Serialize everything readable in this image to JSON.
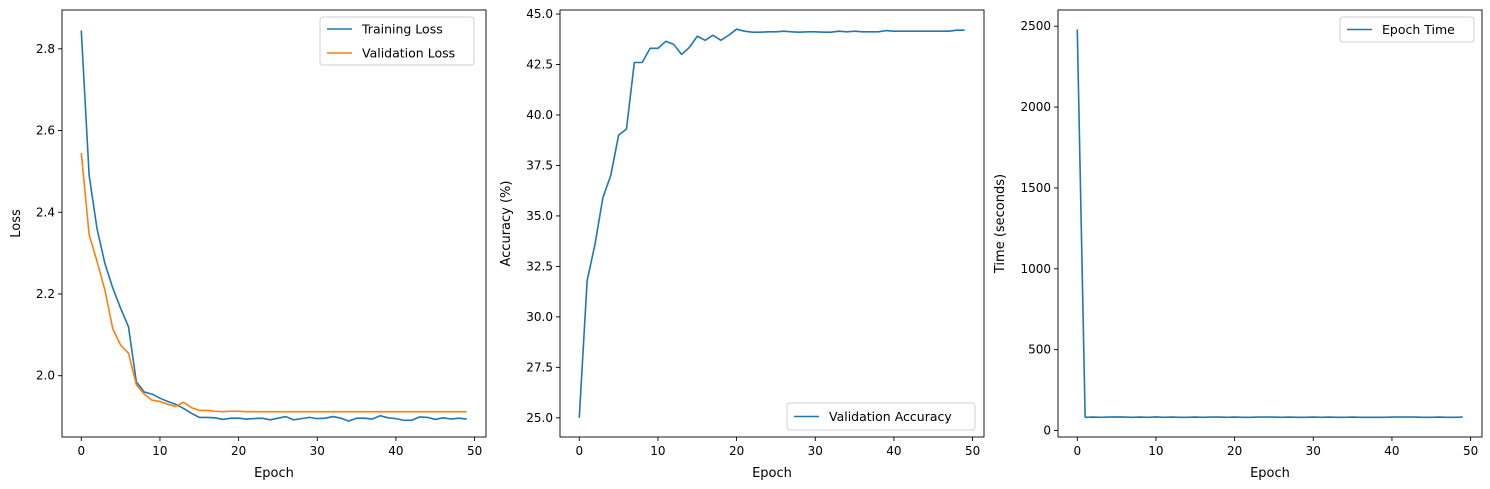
{
  "chart_data": [
    {
      "type": "line",
      "xlabel": "Epoch",
      "ylabel": "Loss",
      "xlim": [
        -2.45,
        51.45
      ],
      "ylim": [
        1.85,
        2.895
      ],
      "xticks": [
        0,
        10,
        20,
        30,
        40,
        50
      ],
      "yticks": [
        2.0,
        2.2,
        2.4,
        2.6,
        2.8
      ],
      "ytick_labels": [
        "2.0",
        "2.2",
        "2.4",
        "2.6",
        "2.8"
      ],
      "grid": false,
      "legend_location": "upper right",
      "colors": [
        "#1f77b4",
        "#ff7f0e"
      ],
      "x": [
        0,
        1,
        2,
        3,
        4,
        5,
        6,
        7,
        8,
        9,
        10,
        11,
        12,
        13,
        14,
        15,
        16,
        17,
        18,
        19,
        20,
        21,
        22,
        23,
        24,
        25,
        26,
        27,
        28,
        29,
        30,
        31,
        32,
        33,
        34,
        35,
        36,
        37,
        38,
        39,
        40,
        41,
        42,
        43,
        44,
        45,
        46,
        47,
        48,
        49
      ],
      "series": [
        {
          "name": "Training Loss",
          "values": [
            2.845,
            2.49,
            2.36,
            2.275,
            2.215,
            2.165,
            2.12,
            1.985,
            1.96,
            1.955,
            1.945,
            1.937,
            1.93,
            1.92,
            1.908,
            1.898,
            1.898,
            1.897,
            1.893,
            1.896,
            1.896,
            1.894,
            1.895,
            1.896,
            1.892,
            1.896,
            1.9,
            1.892,
            1.895,
            1.898,
            1.895,
            1.896,
            1.9,
            1.896,
            1.889,
            1.896,
            1.896,
            1.894,
            1.902,
            1.897,
            1.895,
            1.891,
            1.891,
            1.899,
            1.898,
            1.893,
            1.897,
            1.894,
            1.896,
            1.894
          ]
        },
        {
          "name": "Validation Loss",
          "values": [
            2.545,
            2.345,
            2.28,
            2.21,
            2.115,
            2.075,
            2.055,
            1.978,
            1.955,
            1.94,
            1.937,
            1.93,
            1.925,
            1.935,
            1.922,
            1.915,
            1.915,
            1.913,
            1.912,
            1.913,
            1.913,
            1.912,
            1.912,
            1.912,
            1.912,
            1.912,
            1.912,
            1.912,
            1.912,
            1.912,
            1.912,
            1.912,
            1.912,
            1.912,
            1.912,
            1.912,
            1.912,
            1.912,
            1.912,
            1.912,
            1.912,
            1.912,
            1.912,
            1.912,
            1.912,
            1.912,
            1.912,
            1.912,
            1.912,
            1.912
          ]
        }
      ]
    },
    {
      "type": "line",
      "xlabel": "Epoch",
      "ylabel": "Accuracy (%)",
      "xlim": [
        -2.45,
        51.45
      ],
      "ylim": [
        24.05,
        45.2
      ],
      "xticks": [
        0,
        10,
        20,
        30,
        40,
        50
      ],
      "yticks": [
        25.0,
        27.5,
        30.0,
        32.5,
        35.0,
        37.5,
        40.0,
        42.5,
        45.0
      ],
      "ytick_labels": [
        "25.0",
        "27.5",
        "30.0",
        "32.5",
        "35.0",
        "37.5",
        "40.0",
        "42.5",
        "45.0"
      ],
      "grid": false,
      "legend_location": "lower right",
      "colors": [
        "#1f77b4"
      ],
      "x": [
        0,
        1,
        2,
        3,
        4,
        5,
        6,
        7,
        8,
        9,
        10,
        11,
        12,
        13,
        14,
        15,
        16,
        17,
        18,
        19,
        20,
        21,
        22,
        23,
        24,
        25,
        26,
        27,
        28,
        29,
        30,
        31,
        32,
        33,
        34,
        35,
        36,
        37,
        38,
        39,
        40,
        41,
        42,
        43,
        44,
        45,
        46,
        47,
        48,
        49
      ],
      "series": [
        {
          "name": "Validation Accuracy",
          "values": [
            25.0,
            31.8,
            33.6,
            35.9,
            37.0,
            39.0,
            39.3,
            42.6,
            42.6,
            43.3,
            43.3,
            43.65,
            43.5,
            43.0,
            43.35,
            43.9,
            43.7,
            43.95,
            43.7,
            43.95,
            44.25,
            44.15,
            44.1,
            44.1,
            44.12,
            44.12,
            44.15,
            44.12,
            44.1,
            44.12,
            44.12,
            44.1,
            44.1,
            44.15,
            44.12,
            44.15,
            44.12,
            44.12,
            44.12,
            44.18,
            44.15,
            44.15,
            44.15,
            44.15,
            44.15,
            44.15,
            44.15,
            44.15,
            44.2,
            44.2
          ]
        }
      ]
    },
    {
      "type": "line",
      "xlabel": "Epoch",
      "ylabel": "Time (seconds)",
      "xlim": [
        -2.45,
        51.45
      ],
      "ylim": [
        -40,
        2600
      ],
      "xticks": [
        0,
        10,
        20,
        30,
        40,
        50
      ],
      "yticks": [
        0,
        500,
        1000,
        1500,
        2000,
        2500
      ],
      "ytick_labels": [
        "0",
        "500",
        "1000",
        "1500",
        "2000",
        "2500"
      ],
      "grid": false,
      "legend_location": "upper right",
      "colors": [
        "#1f77b4"
      ],
      "x": [
        0,
        1,
        2,
        3,
        4,
        5,
        6,
        7,
        8,
        9,
        10,
        11,
        12,
        13,
        14,
        15,
        16,
        17,
        18,
        19,
        20,
        21,
        22,
        23,
        24,
        25,
        26,
        27,
        28,
        29,
        30,
        31,
        32,
        33,
        34,
        35,
        36,
        37,
        38,
        39,
        40,
        41,
        42,
        43,
        44,
        45,
        46,
        47,
        48,
        49
      ],
      "series": [
        {
          "name": "Epoch Time",
          "values": [
            2480,
            82,
            83,
            82,
            83,
            84,
            83,
            82,
            83,
            82,
            84,
            82,
            83,
            82,
            82,
            83,
            82,
            83,
            83,
            82,
            83,
            82,
            82,
            83,
            83,
            83,
            82,
            83,
            82,
            82,
            83,
            82,
            83,
            82,
            82,
            83,
            82,
            82,
            82,
            82,
            83,
            83,
            83,
            83,
            82,
            82,
            83,
            82,
            82,
            83
          ]
        }
      ]
    }
  ]
}
